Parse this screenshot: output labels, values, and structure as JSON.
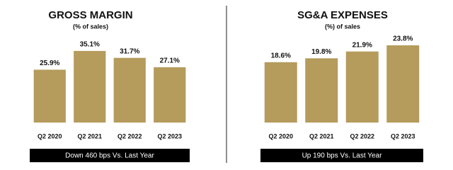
{
  "chart_data": [
    {
      "type": "bar",
      "title": "GROSS MARGIN",
      "subtitle": "(% of sales)",
      "categories": [
        "Q2 2020",
        "Q2 2021",
        "Q2 2022",
        "Q2 2023"
      ],
      "values": [
        25.9,
        35.1,
        31.7,
        27.1
      ],
      "value_labels": [
        "25.9%",
        "35.1%",
        "31.7%",
        "27.1%"
      ],
      "color": "#b59b5c",
      "annotation": "Down 460 bps Vs. Last Year"
    },
    {
      "type": "bar",
      "title": "SG&A EXPENSES",
      "subtitle": "(%) of sales",
      "categories": [
        "Q2 2020",
        "Q2 2021",
        "Q2 2022",
        "Q2 2023"
      ],
      "values": [
        18.6,
        19.8,
        21.9,
        23.8
      ],
      "value_labels": [
        "18.6%",
        "19.8%",
        "21.9%",
        "23.8%"
      ],
      "color": "#b59b5c",
      "annotation": "Up 190 bps Vs. Last Year"
    }
  ]
}
